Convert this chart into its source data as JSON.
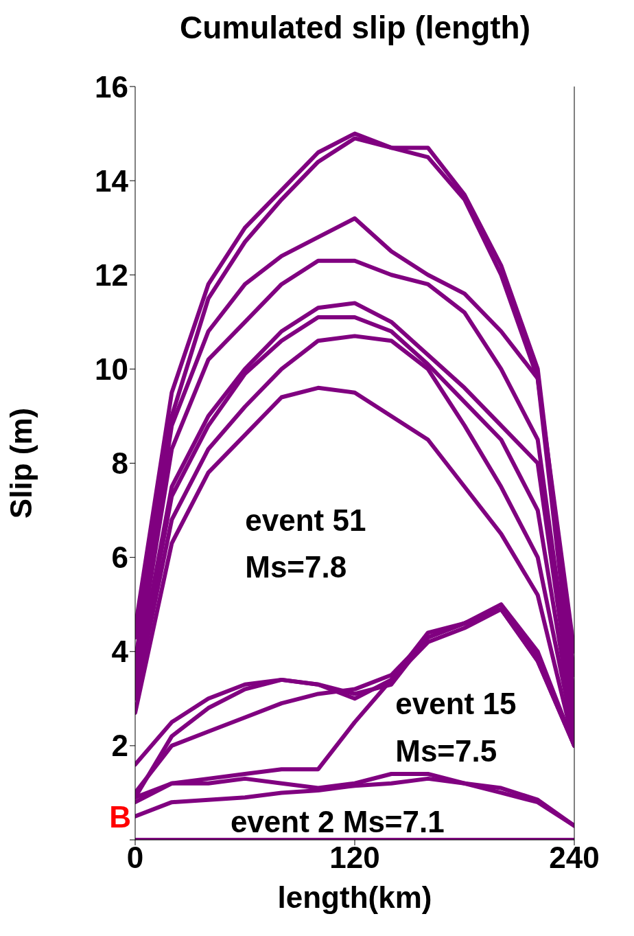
{
  "chart_data": {
    "type": "line",
    "title": "Cumulated slip (length)",
    "xlabel": "length(km)",
    "ylabel": "Slip (m)",
    "x": [
      0,
      20,
      40,
      60,
      80,
      100,
      120,
      140,
      160,
      180,
      200,
      220,
      240
    ],
    "xlim": [
      0,
      240
    ],
    "xticks": [
      0,
      120,
      240
    ],
    "ylim": [
      0,
      16
    ],
    "yticks": [
      {
        "value": 0,
        "label": null
      },
      2,
      4,
      6,
      8,
      10,
      12,
      14,
      16
    ],
    "marker": "none",
    "line_style": "solid",
    "series": [
      {
        "color": "#800080",
        "values": [
          4.5,
          9.5,
          11.8,
          13.0,
          13.8,
          14.6,
          15.0,
          14.7,
          14.5,
          13.6,
          12.0,
          9.8,
          4.0
        ]
      },
      {
        "color": "#800080",
        "values": [
          4.3,
          9.0,
          11.5,
          12.7,
          13.6,
          14.4,
          14.9,
          14.7,
          14.7,
          13.7,
          12.2,
          10.0,
          3.5
        ]
      },
      {
        "color": "#800080",
        "values": [
          3.8,
          8.8,
          10.8,
          11.8,
          12.4,
          12.8,
          13.2,
          12.5,
          12.0,
          11.6,
          10.8,
          9.8,
          3.0
        ]
      },
      {
        "color": "#800080",
        "values": [
          3.5,
          8.3,
          10.2,
          11.0,
          11.8,
          12.3,
          12.3,
          12.0,
          11.8,
          11.2,
          10.0,
          8.5,
          2.8
        ]
      },
      {
        "color": "#800080",
        "values": [
          3.3,
          7.5,
          9.0,
          10.0,
          10.8,
          11.3,
          11.4,
          11.0,
          10.3,
          9.6,
          8.8,
          8.0,
          2.5
        ]
      },
      {
        "color": "#800080",
        "values": [
          3.2,
          7.3,
          8.8,
          9.9,
          10.6,
          11.1,
          11.1,
          10.8,
          10.1,
          9.3,
          8.5,
          7.0,
          2.3
        ]
      },
      {
        "color": "#800080",
        "values": [
          3.0,
          6.8,
          8.3,
          9.2,
          10.0,
          10.6,
          10.7,
          10.6,
          10.0,
          8.8,
          7.5,
          6.0,
          2.2
        ]
      },
      {
        "color": "#800080",
        "values": [
          2.7,
          6.3,
          7.8,
          8.6,
          9.4,
          9.6,
          9.5,
          9.0,
          8.5,
          7.5,
          6.5,
          5.2,
          2.0
        ]
      },
      {
        "color": "#800080",
        "values": [
          0.9,
          2.2,
          2.8,
          3.2,
          3.4,
          3.3,
          3.1,
          3.3,
          4.3,
          4.6,
          5.0,
          4.0,
          2.0
        ]
      },
      {
        "color": "#800080",
        "values": [
          1.6,
          2.5,
          3.0,
          3.3,
          3.4,
          3.3,
          3.0,
          3.4,
          4.2,
          4.5,
          4.9,
          3.9,
          2.0
        ]
      },
      {
        "color": "#800080",
        "values": [
          1.0,
          2.0,
          2.3,
          2.6,
          2.9,
          3.1,
          3.2,
          3.5,
          4.3,
          4.6,
          4.9,
          3.8,
          2.0
        ]
      },
      {
        "color": "#800080",
        "values": [
          0.9,
          1.2,
          1.3,
          1.4,
          1.5,
          1.5,
          2.5,
          3.4,
          4.4,
          4.6,
          4.9,
          3.8,
          2.0
        ]
      },
      {
        "color": "#800080",
        "values": [
          0.8,
          1.2,
          1.2,
          1.3,
          1.2,
          1.1,
          1.2,
          1.4,
          1.4,
          1.2,
          1.0,
          0.8,
          0.3
        ]
      },
      {
        "color": "#800080",
        "values": [
          0.5,
          0.8,
          0.85,
          0.9,
          1.0,
          1.05,
          1.15,
          1.2,
          1.3,
          1.2,
          1.1,
          0.85,
          0.3
        ]
      },
      {
        "color": "#800080",
        "values": [
          0,
          0,
          0,
          0,
          0,
          0,
          0,
          0,
          0,
          0,
          0,
          0,
          0
        ]
      }
    ],
    "annotations": [
      "event 51",
      "Ms=7.8",
      "event 15",
      "Ms=7.5",
      "event 2 Ms=7.1",
      "B"
    ]
  }
}
